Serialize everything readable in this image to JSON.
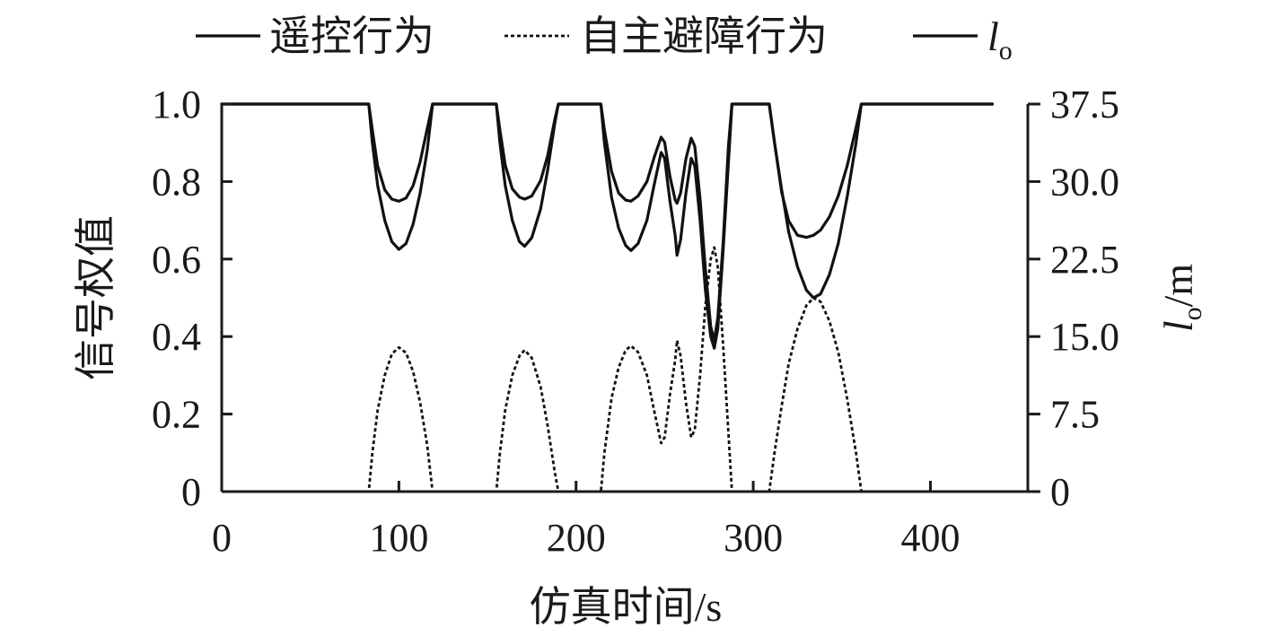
{
  "chart_data": {
    "type": "line",
    "xlabel": "仿真时间/s",
    "ylabel": "信号权值",
    "y2label": {
      "main": "l",
      "sub": "o",
      "unit": "/m"
    },
    "xlim": [
      0,
      455
    ],
    "ylim": [
      0,
      1
    ],
    "y2lim": [
      0,
      37.5
    ],
    "xticks": [
      0,
      100,
      200,
      300,
      400
    ],
    "xtick_labels": [
      "0",
      "100",
      "200",
      "300",
      "400"
    ],
    "yticks": [
      0,
      0.2,
      0.4,
      0.6,
      0.8,
      1.0
    ],
    "ytick_labels": [
      "0",
      "0.2",
      "0.4",
      "0.6",
      "0.8",
      "1.0"
    ],
    "y2ticks": [
      0,
      7.5,
      15.0,
      22.5,
      30.0,
      37.5
    ],
    "y2tick_labels": [
      "0",
      "7.5",
      "15.0",
      "22.5",
      "30.0",
      "37.5"
    ],
    "legend_position": "top",
    "legend": [
      {
        "label": "遥控行为",
        "style": "solid"
      },
      {
        "label": "自主避障行为",
        "style": "dashed"
      },
      {
        "label": "l",
        "sub": "o",
        "style": "solid"
      }
    ],
    "series": [
      {
        "name": "遥控行为",
        "axis": "left",
        "style": "solid",
        "points": [
          [
            0,
            1.0
          ],
          [
            83,
            1.0
          ],
          [
            85,
            0.9
          ],
          [
            88,
            0.79
          ],
          [
            92,
            0.7
          ],
          [
            96,
            0.645
          ],
          [
            100,
            0.625
          ],
          [
            104,
            0.64
          ],
          [
            108,
            0.69
          ],
          [
            112,
            0.77
          ],
          [
            116,
            0.88
          ],
          [
            119,
            1.0
          ],
          [
            155,
            1.0
          ],
          [
            157,
            0.9
          ],
          [
            160,
            0.79
          ],
          [
            164,
            0.7
          ],
          [
            168,
            0.645
          ],
          [
            171,
            0.633
          ],
          [
            175,
            0.655
          ],
          [
            180,
            0.73
          ],
          [
            184,
            0.83
          ],
          [
            188,
            0.95
          ],
          [
            190,
            1.0
          ],
          [
            214,
            1.0
          ],
          [
            216,
            0.9
          ],
          [
            220,
            0.76
          ],
          [
            224,
            0.68
          ],
          [
            228,
            0.635
          ],
          [
            231,
            0.622
          ],
          [
            235,
            0.64
          ],
          [
            240,
            0.7
          ],
          [
            244,
            0.79
          ],
          [
            248,
            0.875
          ],
          [
            250,
            0.86
          ],
          [
            253,
            0.75
          ],
          [
            256,
            0.66
          ],
          [
            257,
            0.61
          ],
          [
            259,
            0.65
          ],
          [
            262,
            0.77
          ],
          [
            265,
            0.86
          ],
          [
            267,
            0.84
          ],
          [
            270,
            0.7
          ],
          [
            273,
            0.52
          ],
          [
            276,
            0.4
          ],
          [
            278,
            0.37
          ],
          [
            280,
            0.42
          ],
          [
            283,
            0.62
          ],
          [
            286,
            0.85
          ],
          [
            288,
            1.0
          ],
          [
            309,
            1.0
          ],
          [
            312,
            0.9
          ],
          [
            316,
            0.78
          ],
          [
            320,
            0.67
          ],
          [
            325,
            0.58
          ],
          [
            330,
            0.52
          ],
          [
            334,
            0.5
          ],
          [
            338,
            0.51
          ],
          [
            343,
            0.56
          ],
          [
            348,
            0.64
          ],
          [
            353,
            0.76
          ],
          [
            358,
            0.9
          ],
          [
            361,
            1.0
          ],
          [
            435,
            1.0
          ]
        ]
      },
      {
        "name": "自主避障行为",
        "axis": "left",
        "style": "dashed",
        "points": [
          [
            0,
            0
          ],
          [
            83,
            0
          ],
          [
            85,
            0.1
          ],
          [
            88,
            0.21
          ],
          [
            92,
            0.3
          ],
          [
            96,
            0.355
          ],
          [
            100,
            0.372
          ],
          [
            104,
            0.358
          ],
          [
            108,
            0.31
          ],
          [
            112,
            0.23
          ],
          [
            116,
            0.12
          ],
          [
            119,
            0
          ],
          [
            155,
            0
          ],
          [
            157,
            0.1
          ],
          [
            160,
            0.21
          ],
          [
            164,
            0.3
          ],
          [
            168,
            0.35
          ],
          [
            171,
            0.365
          ],
          [
            175,
            0.345
          ],
          [
            180,
            0.27
          ],
          [
            184,
            0.17
          ],
          [
            188,
            0.05
          ],
          [
            190,
            0
          ],
          [
            214,
            0
          ],
          [
            216,
            0.1
          ],
          [
            220,
            0.24
          ],
          [
            224,
            0.32
          ],
          [
            228,
            0.365
          ],
          [
            231,
            0.376
          ],
          [
            235,
            0.36
          ],
          [
            240,
            0.3
          ],
          [
            244,
            0.21
          ],
          [
            248,
            0.125
          ],
          [
            250,
            0.14
          ],
          [
            253,
            0.25
          ],
          [
            256,
            0.34
          ],
          [
            257,
            0.39
          ],
          [
            259,
            0.35
          ],
          [
            262,
            0.23
          ],
          [
            265,
            0.14
          ],
          [
            267,
            0.16
          ],
          [
            270,
            0.3
          ],
          [
            273,
            0.48
          ],
          [
            276,
            0.6
          ],
          [
            278,
            0.63
          ],
          [
            280,
            0.58
          ],
          [
            283,
            0.38
          ],
          [
            286,
            0.15
          ],
          [
            288,
            0
          ],
          [
            309,
            0
          ],
          [
            312,
            0.1
          ],
          [
            316,
            0.22
          ],
          [
            320,
            0.33
          ],
          [
            325,
            0.42
          ],
          [
            330,
            0.48
          ],
          [
            334,
            0.5
          ],
          [
            338,
            0.49
          ],
          [
            343,
            0.44
          ],
          [
            348,
            0.36
          ],
          [
            353,
            0.24
          ],
          [
            358,
            0.1
          ],
          [
            361,
            0
          ],
          [
            435,
            0
          ]
        ]
      },
      {
        "name": "l",
        "sub": "o",
        "axis": "right",
        "style": "solid",
        "points": [
          [
            0,
            37.5
          ],
          [
            83,
            37.5
          ],
          [
            85,
            35.0
          ],
          [
            88,
            31.5
          ],
          [
            92,
            29.2
          ],
          [
            96,
            28.3
          ],
          [
            100,
            28.1
          ],
          [
            104,
            28.4
          ],
          [
            108,
            29.6
          ],
          [
            112,
            31.9
          ],
          [
            116,
            35.1
          ],
          [
            119,
            37.5
          ],
          [
            155,
            37.5
          ],
          [
            157,
            35.0
          ],
          [
            160,
            31.6
          ],
          [
            164,
            29.3
          ],
          [
            168,
            28.5
          ],
          [
            171,
            28.3
          ],
          [
            175,
            28.6
          ],
          [
            180,
            30.1
          ],
          [
            184,
            32.5
          ],
          [
            188,
            36.0
          ],
          [
            190,
            37.5
          ],
          [
            214,
            37.5
          ],
          [
            216,
            35.0
          ],
          [
            220,
            31.0
          ],
          [
            224,
            28.9
          ],
          [
            228,
            28.2
          ],
          [
            231,
            28.1
          ],
          [
            235,
            28.6
          ],
          [
            240,
            30.0
          ],
          [
            244,
            32.3
          ],
          [
            248,
            34.3
          ],
          [
            250,
            33.8
          ],
          [
            253,
            30.5
          ],
          [
            256,
            28.2
          ],
          [
            257,
            27.9
          ],
          [
            259,
            28.9
          ],
          [
            262,
            32.2
          ],
          [
            265,
            34.2
          ],
          [
            267,
            33.4
          ],
          [
            270,
            28.3
          ],
          [
            273,
            21.5
          ],
          [
            276,
            16.0
          ],
          [
            278,
            14.6
          ],
          [
            280,
            16.8
          ],
          [
            283,
            24.0
          ],
          [
            286,
            33.5
          ],
          [
            288,
            37.5
          ],
          [
            309,
            37.5
          ],
          [
            312,
            33.8
          ],
          [
            316,
            29.0
          ],
          [
            320,
            26.2
          ],
          [
            325,
            24.8
          ],
          [
            330,
            24.6
          ],
          [
            334,
            24.8
          ],
          [
            338,
            25.3
          ],
          [
            343,
            26.6
          ],
          [
            348,
            28.6
          ],
          [
            353,
            31.5
          ],
          [
            358,
            35.2
          ],
          [
            361,
            37.5
          ],
          [
            435,
            37.5
          ]
        ]
      }
    ]
  }
}
